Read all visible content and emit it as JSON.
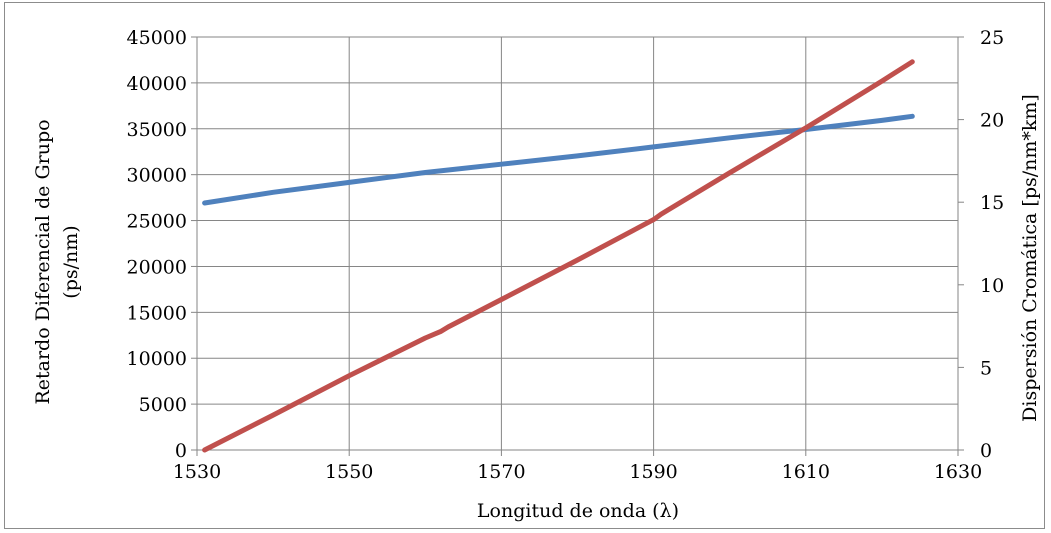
{
  "chart_data": {
    "type": "line",
    "title": "",
    "xlabel": "Longitud de onda (λ)",
    "ylabel_left_line1": "Retardo Diferencial de Grupo",
    "ylabel_left_line2": "(ps/nm)",
    "ylabel_right": "Dispersión Cromática [ps/nm*km]",
    "xlim": [
      1530,
      1630
    ],
    "ylim_left": [
      0,
      45000
    ],
    "ylim_right": [
      0,
      25
    ],
    "x_ticks": [
      "1530",
      "1550",
      "1570",
      "1590",
      "1610",
      "1630"
    ],
    "y_ticks_left": [
      "0",
      "5000",
      "10000",
      "15000",
      "20000",
      "25000",
      "30000",
      "35000",
      "40000",
      "45000"
    ],
    "y_ticks_right": [
      "0",
      "5",
      "10",
      "15",
      "20",
      "25"
    ],
    "grid": true,
    "legend": "none",
    "series": [
      {
        "axis": "right",
        "color": "#4f81bd",
        "x": [
          1531,
          1540,
          1550,
          1560,
          1570,
          1580,
          1590,
          1600,
          1610,
          1620,
          1624
        ],
        "y": [
          14.95,
          15.6,
          16.2,
          16.8,
          17.3,
          17.8,
          18.35,
          18.9,
          19.4,
          19.95,
          20.2
        ]
      },
      {
        "axis": "left",
        "color": "#c0504d",
        "x": [
          1531,
          1540,
          1550,
          1560,
          1562,
          1563,
          1570,
          1580,
          1590,
          1591,
          1592,
          1600,
          1610,
          1620,
          1624
        ],
        "y": [
          0,
          3800,
          8100,
          12200,
          12900,
          13400,
          16400,
          20700,
          25100,
          25700,
          26200,
          30200,
          35100,
          40200,
          42300
        ]
      }
    ]
  }
}
